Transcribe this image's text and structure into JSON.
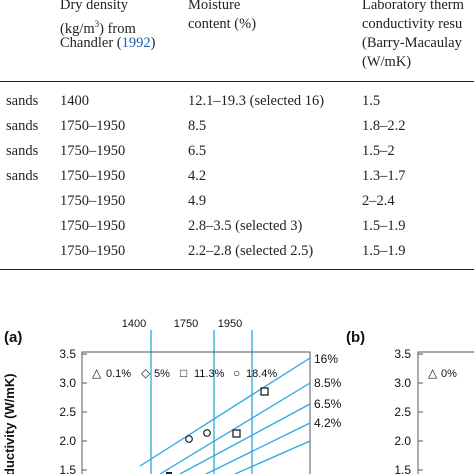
{
  "table": {
    "headers": {
      "dry_density": [
        "Dry density",
        "(kg/m",
        "3",
        ") from",
        "Chandler (",
        "1992",
        ")"
      ],
      "moisture": [
        "Moisture",
        "content (%)"
      ],
      "lab": [
        "Laboratory therm",
        "conductivity resu",
        "(Barry-Macaulay",
        "(W/mK)"
      ]
    },
    "rows": [
      {
        "soil": "sands",
        "density": "1400",
        "moisture": "12.1–19.3 (selected 16)",
        "conductivity": "1.5"
      },
      {
        "soil": "sands",
        "density": "1750–1950",
        "moisture": "8.5",
        "conductivity": "1.8–2.2"
      },
      {
        "soil": "sands",
        "density": "1750–1950",
        "moisture": "6.5",
        "conductivity": "1.5–2"
      },
      {
        "soil": "sands",
        "density": "1750–1950",
        "moisture": "4.2",
        "conductivity": "1.3–1.7"
      },
      {
        "soil": "",
        "density": "1750–1950",
        "moisture": "4.9",
        "conductivity": "2–2.4"
      },
      {
        "soil": "",
        "density": "1750–1950",
        "moisture": "2.8–3.5 (selected 3)",
        "conductivity": "1.5–1.9"
      },
      {
        "soil": "",
        "density": "1750–1950",
        "moisture": "2.2–2.8 (selected 2.5)",
        "conductivity": "1.5–1.9"
      }
    ]
  },
  "chart_data": [
    {
      "type": "scatter",
      "panel_label": "(a)",
      "ylabel": "ductivity (W/mK)",
      "ylim": [
        1.5,
        3.5
      ],
      "yticks": [
        "1.5",
        "2.0",
        "2.5",
        "3.0",
        "3.5"
      ],
      "density_lines": [
        "1400",
        "1750",
        "1950"
      ],
      "legend": [
        {
          "symbol": "△",
          "label": "0.1%"
        },
        {
          "symbol": "◇",
          "label": "5%"
        },
        {
          "symbol": "□",
          "label": "11.3%"
        },
        {
          "symbol": "○",
          "label": "18.4%"
        }
      ],
      "moisture_lines": [
        "16%",
        "8.5%",
        "6.5%",
        "4.2%"
      ],
      "grid": false
    },
    {
      "type": "scatter",
      "panel_label": "(b)",
      "ylim": [
        1.5,
        3.5
      ],
      "yticks": [
        "1.5",
        "2.0",
        "2.5",
        "3.0",
        "3.5"
      ],
      "legend": [
        {
          "symbol": "△",
          "label": "0%"
        }
      ],
      "grid": false
    }
  ],
  "colors": {
    "accent": "#29a9e0",
    "link": "#1a5fb4",
    "text": "#222222"
  }
}
